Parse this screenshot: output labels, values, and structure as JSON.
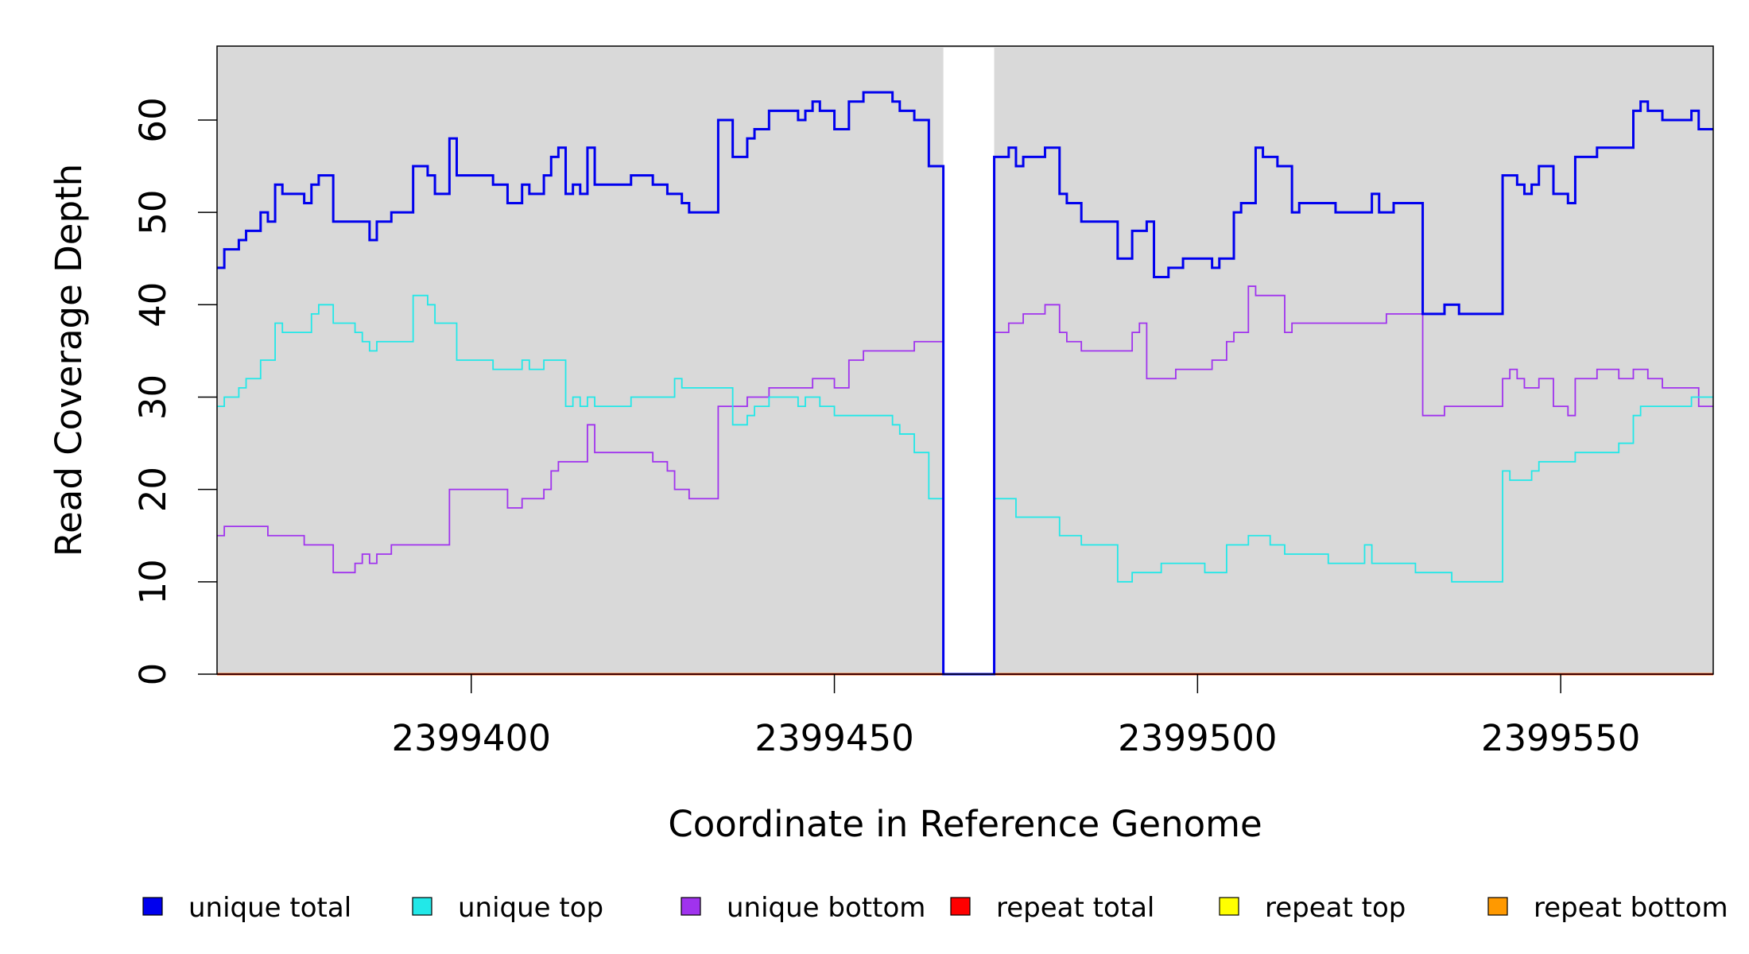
{
  "chart_data": {
    "type": "line",
    "step": true,
    "xlabel": "Coordinate in Reference Genome",
    "ylabel": "Read Coverage Depth",
    "xlim": [
      2399365,
      2399571
    ],
    "ylim": [
      0,
      68
    ],
    "x_ticks": [
      2399400,
      2399450,
      2399500,
      2399550
    ],
    "x_tick_labels": [
      "2399400",
      "2399450",
      "2399500",
      "2399550"
    ],
    "y_ticks": [
      0,
      10,
      20,
      30,
      40,
      50,
      60
    ],
    "y_tick_labels": [
      "0",
      "10",
      "20",
      "30",
      "40",
      "50",
      "60"
    ],
    "background": "#d9d9d9",
    "gap": [
      2399465,
      2399472
    ],
    "legend_position": "bottom",
    "series": [
      {
        "name": "unique total",
        "color": "#0000ee",
        "points": [
          [
            2399365,
            44
          ],
          [
            2399366,
            46
          ],
          [
            2399368,
            47
          ],
          [
            2399369,
            48
          ],
          [
            2399371,
            50
          ],
          [
            2399372,
            49
          ],
          [
            2399373,
            53
          ],
          [
            2399374,
            52
          ],
          [
            2399377,
            51
          ],
          [
            2399378,
            53
          ],
          [
            2399379,
            54
          ],
          [
            2399381,
            49
          ],
          [
            2399386,
            47
          ],
          [
            2399387,
            49
          ],
          [
            2399389,
            50
          ],
          [
            2399392,
            55
          ],
          [
            2399394,
            54
          ],
          [
            2399395,
            52
          ],
          [
            2399397,
            58
          ],
          [
            2399398,
            54
          ],
          [
            2399403,
            53
          ],
          [
            2399405,
            51
          ],
          [
            2399407,
            53
          ],
          [
            2399408,
            52
          ],
          [
            2399410,
            54
          ],
          [
            2399411,
            56
          ],
          [
            2399412,
            57
          ],
          [
            2399413,
            52
          ],
          [
            2399414,
            53
          ],
          [
            2399415,
            52
          ],
          [
            2399416,
            57
          ],
          [
            2399417,
            53
          ],
          [
            2399422,
            54
          ],
          [
            2399425,
            53
          ],
          [
            2399427,
            52
          ],
          [
            2399429,
            51
          ],
          [
            2399430,
            50
          ],
          [
            2399434,
            60
          ],
          [
            2399436,
            56
          ],
          [
            2399438,
            58
          ],
          [
            2399439,
            59
          ],
          [
            2399441,
            61
          ],
          [
            2399445,
            60
          ],
          [
            2399446,
            61
          ],
          [
            2399447,
            62
          ],
          [
            2399448,
            61
          ],
          [
            2399450,
            59
          ],
          [
            2399452,
            62
          ],
          [
            2399454,
            63
          ],
          [
            2399458,
            62
          ],
          [
            2399459,
            61
          ],
          [
            2399461,
            60
          ],
          [
            2399463,
            55
          ],
          [
            2399465,
            0
          ],
          [
            2399472,
            56
          ],
          [
            2399474,
            57
          ],
          [
            2399475,
            55
          ],
          [
            2399476,
            56
          ],
          [
            2399479,
            57
          ],
          [
            2399481,
            52
          ],
          [
            2399482,
            51
          ],
          [
            2399484,
            49
          ],
          [
            2399489,
            45
          ],
          [
            2399491,
            48
          ],
          [
            2399493,
            49
          ],
          [
            2399494,
            43
          ],
          [
            2399496,
            44
          ],
          [
            2399498,
            45
          ],
          [
            2399502,
            44
          ],
          [
            2399503,
            45
          ],
          [
            2399505,
            50
          ],
          [
            2399506,
            51
          ],
          [
            2399508,
            57
          ],
          [
            2399509,
            56
          ],
          [
            2399511,
            55
          ],
          [
            2399513,
            50
          ],
          [
            2399514,
            51
          ],
          [
            2399519,
            50
          ],
          [
            2399524,
            52
          ],
          [
            2399525,
            50
          ],
          [
            2399527,
            51
          ],
          [
            2399531,
            39
          ],
          [
            2399534,
            40
          ],
          [
            2399536,
            39
          ],
          [
            2399542,
            54
          ],
          [
            2399544,
            53
          ],
          [
            2399545,
            52
          ],
          [
            2399546,
            53
          ],
          [
            2399547,
            55
          ],
          [
            2399549,
            52
          ],
          [
            2399551,
            51
          ],
          [
            2399552,
            56
          ],
          [
            2399555,
            57
          ],
          [
            2399560,
            61
          ],
          [
            2399561,
            62
          ],
          [
            2399562,
            61
          ],
          [
            2399564,
            60
          ],
          [
            2399568,
            61
          ],
          [
            2399569,
            59
          ],
          [
            2399571,
            59
          ]
        ]
      },
      {
        "name": "unique top",
        "color": "#22e8e8",
        "points": [
          [
            2399365,
            29
          ],
          [
            2399366,
            30
          ],
          [
            2399368,
            31
          ],
          [
            2399369,
            32
          ],
          [
            2399371,
            34
          ],
          [
            2399373,
            38
          ],
          [
            2399374,
            37
          ],
          [
            2399378,
            39
          ],
          [
            2399379,
            40
          ],
          [
            2399381,
            38
          ],
          [
            2399384,
            37
          ],
          [
            2399385,
            36
          ],
          [
            2399386,
            35
          ],
          [
            2399387,
            36
          ],
          [
            2399392,
            41
          ],
          [
            2399394,
            40
          ],
          [
            2399395,
            38
          ],
          [
            2399398,
            34
          ],
          [
            2399403,
            33
          ],
          [
            2399407,
            34
          ],
          [
            2399408,
            33
          ],
          [
            2399410,
            34
          ],
          [
            2399413,
            29
          ],
          [
            2399414,
            30
          ],
          [
            2399415,
            29
          ],
          [
            2399416,
            30
          ],
          [
            2399417,
            29
          ],
          [
            2399422,
            30
          ],
          [
            2399428,
            32
          ],
          [
            2399429,
            31
          ],
          [
            2399436,
            27
          ],
          [
            2399438,
            28
          ],
          [
            2399439,
            29
          ],
          [
            2399441,
            30
          ],
          [
            2399445,
            29
          ],
          [
            2399446,
            30
          ],
          [
            2399448,
            29
          ],
          [
            2399450,
            28
          ],
          [
            2399458,
            27
          ],
          [
            2399459,
            26
          ],
          [
            2399461,
            24
          ],
          [
            2399463,
            19
          ],
          [
            2399465,
            0
          ],
          [
            2399472,
            19
          ],
          [
            2399475,
            17
          ],
          [
            2399481,
            15
          ],
          [
            2399484,
            14
          ],
          [
            2399489,
            10
          ],
          [
            2399491,
            11
          ],
          [
            2399495,
            12
          ],
          [
            2399501,
            11
          ],
          [
            2399504,
            14
          ],
          [
            2399507,
            15
          ],
          [
            2399510,
            14
          ],
          [
            2399512,
            13
          ],
          [
            2399518,
            12
          ],
          [
            2399523,
            14
          ],
          [
            2399524,
            12
          ],
          [
            2399530,
            11
          ],
          [
            2399535,
            10
          ],
          [
            2399542,
            22
          ],
          [
            2399543,
            21
          ],
          [
            2399546,
            22
          ],
          [
            2399547,
            23
          ],
          [
            2399552,
            24
          ],
          [
            2399558,
            25
          ],
          [
            2399560,
            28
          ],
          [
            2399561,
            29
          ],
          [
            2399568,
            30
          ],
          [
            2399571,
            30
          ]
        ]
      },
      {
        "name": "unique bottom",
        "color": "#a033ee",
        "points": [
          [
            2399365,
            15
          ],
          [
            2399366,
            16
          ],
          [
            2399372,
            15
          ],
          [
            2399377,
            14
          ],
          [
            2399381,
            11
          ],
          [
            2399384,
            12
          ],
          [
            2399385,
            13
          ],
          [
            2399386,
            12
          ],
          [
            2399387,
            13
          ],
          [
            2399389,
            14
          ],
          [
            2399397,
            20
          ],
          [
            2399405,
            18
          ],
          [
            2399407,
            19
          ],
          [
            2399410,
            20
          ],
          [
            2399411,
            22
          ],
          [
            2399412,
            23
          ],
          [
            2399416,
            27
          ],
          [
            2399417,
            24
          ],
          [
            2399425,
            23
          ],
          [
            2399427,
            22
          ],
          [
            2399428,
            20
          ],
          [
            2399430,
            19
          ],
          [
            2399434,
            29
          ],
          [
            2399438,
            30
          ],
          [
            2399441,
            31
          ],
          [
            2399447,
            32
          ],
          [
            2399450,
            31
          ],
          [
            2399452,
            34
          ],
          [
            2399454,
            35
          ],
          [
            2399461,
            36
          ],
          [
            2399465,
            0
          ],
          [
            2399472,
            37
          ],
          [
            2399474,
            38
          ],
          [
            2399476,
            39
          ],
          [
            2399479,
            40
          ],
          [
            2399481,
            37
          ],
          [
            2399482,
            36
          ],
          [
            2399484,
            35
          ],
          [
            2399491,
            37
          ],
          [
            2399492,
            38
          ],
          [
            2399493,
            32
          ],
          [
            2399497,
            33
          ],
          [
            2399502,
            34
          ],
          [
            2399504,
            36
          ],
          [
            2399505,
            37
          ],
          [
            2399507,
            42
          ],
          [
            2399508,
            41
          ],
          [
            2399512,
            37
          ],
          [
            2399513,
            38
          ],
          [
            2399526,
            39
          ],
          [
            2399531,
            28
          ],
          [
            2399534,
            29
          ],
          [
            2399542,
            32
          ],
          [
            2399543,
            33
          ],
          [
            2399544,
            32
          ],
          [
            2399545,
            31
          ],
          [
            2399547,
            32
          ],
          [
            2399549,
            29
          ],
          [
            2399551,
            28
          ],
          [
            2399552,
            32
          ],
          [
            2399555,
            33
          ],
          [
            2399558,
            32
          ],
          [
            2399560,
            33
          ],
          [
            2399562,
            32
          ],
          [
            2399564,
            31
          ],
          [
            2399569,
            29
          ],
          [
            2399571,
            29
          ]
        ]
      },
      {
        "name": "repeat total",
        "color": "#ff0000",
        "points": [
          [
            2399365,
            0
          ],
          [
            2399571,
            0
          ]
        ]
      },
      {
        "name": "repeat top",
        "color": "#ffff00",
        "points": [
          [
            2399365,
            0
          ],
          [
            2399571,
            0
          ]
        ]
      },
      {
        "name": "repeat bottom",
        "color": "#ff9900",
        "points": [
          [
            2399365,
            0
          ],
          [
            2399571,
            0
          ]
        ]
      }
    ]
  }
}
